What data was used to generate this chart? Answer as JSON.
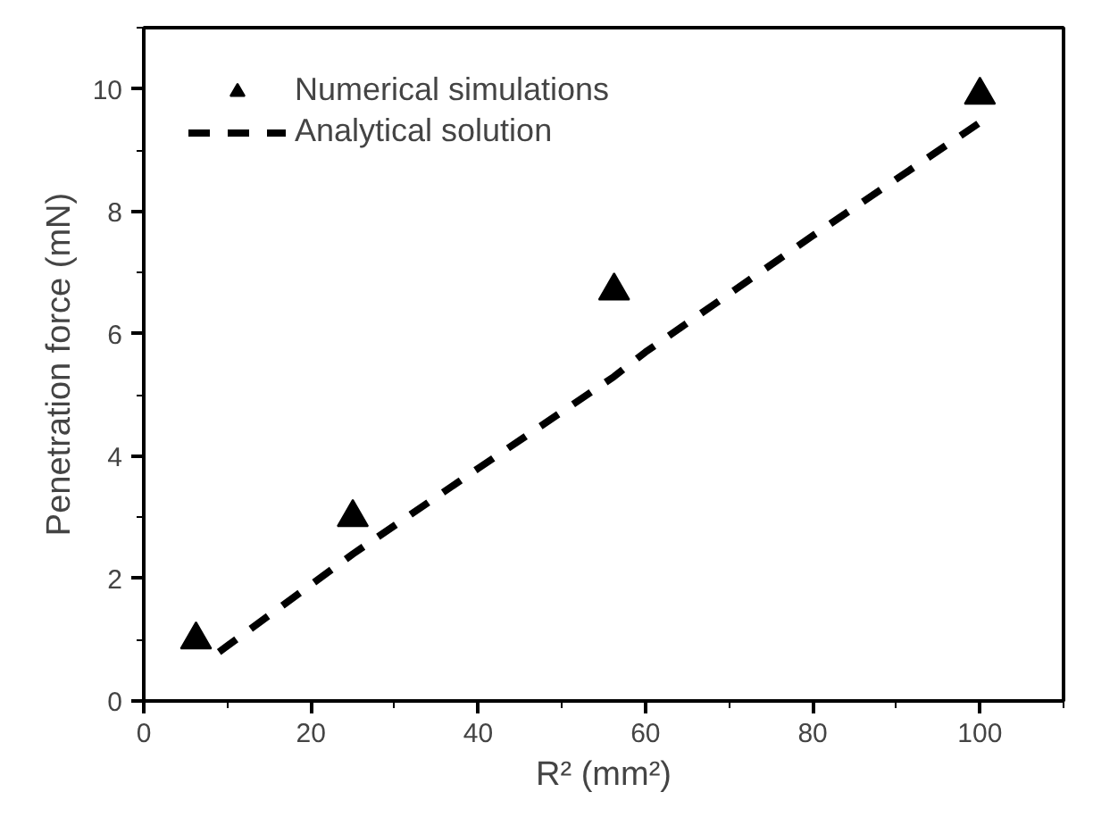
{
  "chart_data": {
    "type": "scatter",
    "xlabel": "R² (mm²)",
    "ylabel": "Penetration force (mN)",
    "xlim": [
      0,
      110
    ],
    "ylim": [
      0,
      11
    ],
    "xticks": [
      0,
      20,
      40,
      60,
      80,
      100
    ],
    "yticks": [
      0,
      2,
      4,
      6,
      8,
      10
    ],
    "grid": false,
    "legend": "top left",
    "series": [
      {
        "name": "Numerical simulations",
        "marker": "triangle",
        "color": "#000000",
        "x": [
          6.25,
          25,
          56.25,
          100
        ],
        "values": [
          1.0,
          3.0,
          6.7,
          9.9
        ]
      },
      {
        "name": "Analytical solution",
        "type": "line",
        "line_style": "dashed",
        "marker": "none",
        "color": "#000000",
        "x": [
          9,
          20,
          25,
          40,
          56.25,
          60,
          80,
          100
        ],
        "values": [
          0.8,
          1.9,
          2.4,
          3.8,
          5.3,
          5.7,
          7.6,
          9.45
        ]
      }
    ]
  }
}
